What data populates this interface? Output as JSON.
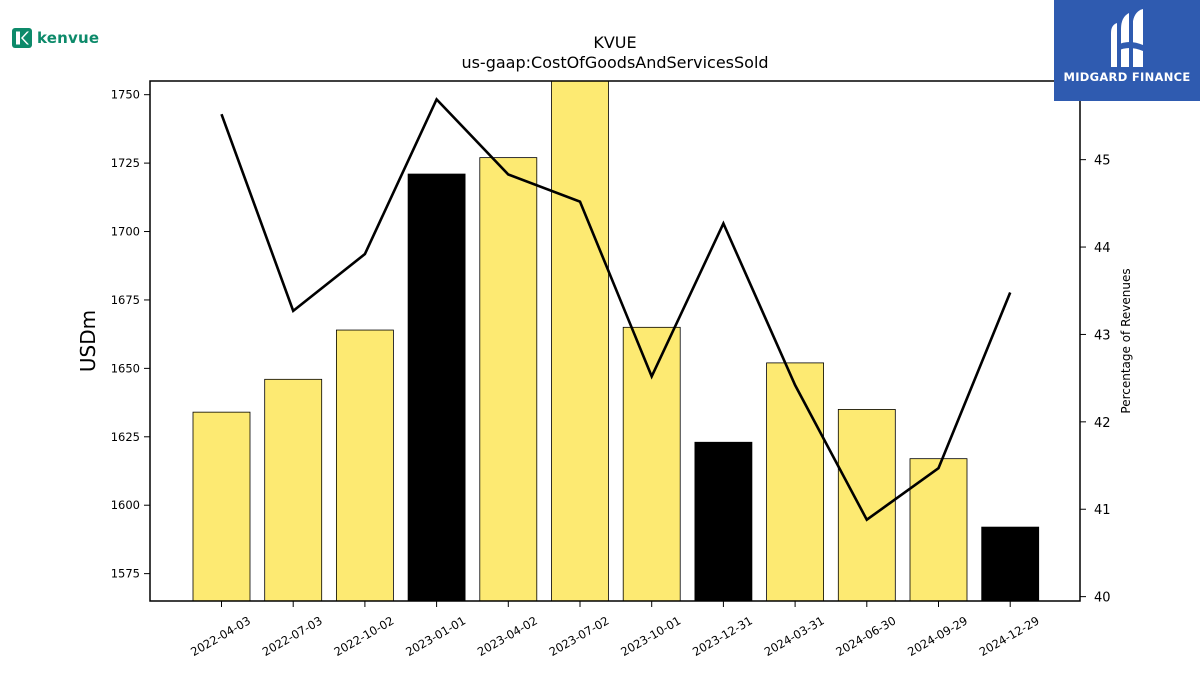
{
  "brand": {
    "company_logo": "Kenvue",
    "publisher_logo": "MIDGARD FINANCE",
    "publisher_color": "#2f5bb0",
    "company_color": "#0d8a6a"
  },
  "chart_data": {
    "type": "bar",
    "title": "KVUE",
    "subtitle": "us-gaap:CostOfGoodsAndServicesSold",
    "ylabel": "USDm",
    "y2label": "Percentage of Revenues",
    "ylim": [
      1565,
      1755
    ],
    "y2lim": [
      39.95,
      45.9
    ],
    "yticks": [
      1575,
      1600,
      1625,
      1650,
      1675,
      1700,
      1725,
      1750
    ],
    "y2ticks": [
      40,
      41,
      42,
      43,
      44,
      45
    ],
    "categories": [
      "2022-04-03",
      "2022-07-03",
      "2022-10-02",
      "2023-01-01",
      "2023-04-02",
      "2023-07-02",
      "2023-10-01",
      "2023-12-31",
      "2024-03-31",
      "2024-06-30",
      "2024-09-29",
      "2024-12-29"
    ],
    "series": [
      {
        "name": "",
        "kind": "bar",
        "axis": "left",
        "values": [
          1634,
          1646,
          1664,
          1721,
          1727,
          1755,
          1665,
          1623,
          1652,
          1635,
          1617,
          1592
        ],
        "colors": [
          "#fdea72",
          "#fdea72",
          "#fdea72",
          "#000000",
          "#fdea72",
          "#fdea72",
          "#fdea72",
          "#000000",
          "#fdea72",
          "#fdea72",
          "#fdea72",
          "#000000"
        ]
      },
      {
        "name": "",
        "kind": "line",
        "axis": "right",
        "color": "#000000",
        "values": [
          45.52,
          43.27,
          43.92,
          45.69,
          44.83,
          44.52,
          42.52,
          44.27,
          42.42,
          40.88,
          41.47,
          43.48
        ]
      }
    ]
  }
}
